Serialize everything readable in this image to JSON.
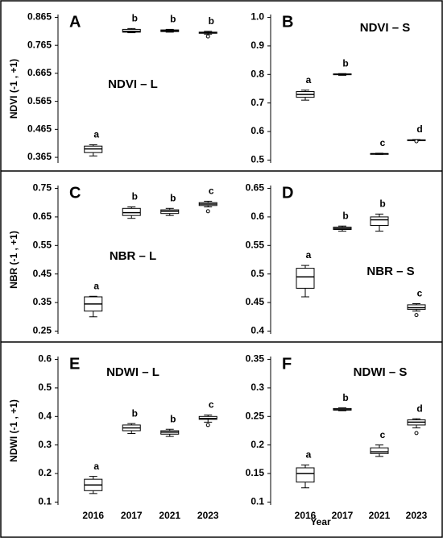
{
  "x_label": "Year",
  "chart_data": [
    {
      "type": "box",
      "panel": "A",
      "title": "NDVI – L",
      "ylabel": "NDVI (-1 , +1)",
      "ylim": [
        0.345,
        0.875
      ],
      "yticks": [
        0.365,
        0.465,
        0.565,
        0.665,
        0.765,
        0.865
      ],
      "boxes": [
        {
          "min": 0.37,
          "q1": 0.382,
          "median": 0.395,
          "q3": 0.405,
          "max": 0.41,
          "label": "a"
        },
        {
          "min": 0.81,
          "q1": 0.812,
          "median": 0.815,
          "q3": 0.822,
          "max": 0.825,
          "label": "b"
        },
        {
          "min": 0.812,
          "q1": 0.814,
          "median": 0.817,
          "q3": 0.82,
          "max": 0.822,
          "label": "b"
        },
        {
          "min": 0.805,
          "q1": 0.808,
          "median": 0.81,
          "q3": 0.812,
          "max": 0.815,
          "outliers": [
            0.797
          ],
          "label": "b"
        }
      ]
    },
    {
      "type": "box",
      "panel": "B",
      "title": "NDVI – S",
      "ylim": [
        0.49,
        1.01
      ],
      "yticks": [
        0.5,
        0.6,
        0.7,
        0.8,
        0.9,
        {
          "value": 1,
          "label": "1.0"
        }
      ],
      "boxes": [
        {
          "min": 0.71,
          "q1": 0.72,
          "median": 0.73,
          "q3": 0.74,
          "max": 0.745,
          "label": "a"
        },
        {
          "min": 0.797,
          "q1": 0.799,
          "median": 0.8,
          "q3": 0.802,
          "max": 0.803,
          "label": "b"
        },
        {
          "min": 0.52,
          "q1": 0.521,
          "median": 0.522,
          "q3": 0.523,
          "max": 0.524,
          "label": "c"
        },
        {
          "min": 0.568,
          "q1": 0.569,
          "median": 0.57,
          "q3": 0.571,
          "max": 0.572,
          "outliers": [
            0.566
          ],
          "label": "d"
        }
      ]
    },
    {
      "type": "box",
      "panel": "C",
      "title": "NBR – L",
      "ylabel": "NBR (-1 , +1)",
      "ylim": [
        0.24,
        0.76
      ],
      "yticks": [
        0.25,
        0.35,
        0.45,
        0.55,
        0.65,
        0.75
      ],
      "boxes": [
        {
          "min": 0.3,
          "q1": 0.32,
          "median": 0.345,
          "q3": 0.37,
          "max": 0.372,
          "label": "a"
        },
        {
          "min": 0.645,
          "q1": 0.655,
          "median": 0.665,
          "q3": 0.68,
          "max": 0.685,
          "label": "b"
        },
        {
          "min": 0.655,
          "q1": 0.662,
          "median": 0.67,
          "q3": 0.675,
          "max": 0.68,
          "label": "b"
        },
        {
          "min": 0.685,
          "q1": 0.69,
          "median": 0.695,
          "q3": 0.7,
          "max": 0.705,
          "outliers": [
            0.67
          ],
          "label": "c"
        }
      ]
    },
    {
      "type": "box",
      "panel": "D",
      "title": "NBR – S",
      "ylim": [
        0.395,
        0.655
      ],
      "yticks": [
        0.4,
        0.45,
        0.5,
        0.55,
        0.6,
        0.65
      ],
      "boxes": [
        {
          "min": 0.46,
          "q1": 0.475,
          "median": 0.495,
          "q3": 0.51,
          "max": 0.515,
          "label": "a"
        },
        {
          "min": 0.575,
          "q1": 0.578,
          "median": 0.58,
          "q3": 0.582,
          "max": 0.584,
          "label": "b"
        },
        {
          "min": 0.575,
          "q1": 0.585,
          "median": 0.595,
          "q3": 0.6,
          "max": 0.605,
          "label": "b"
        },
        {
          "min": 0.435,
          "q1": 0.438,
          "median": 0.441,
          "q3": 0.446,
          "max": 0.448,
          "outliers": [
            0.428
          ],
          "label": "c"
        }
      ]
    },
    {
      "type": "box",
      "panel": "E",
      "title": "NDWI – L",
      "ylabel": "NDWI (-1 , +1)",
      "categories": [
        "2016",
        "2017",
        "2021",
        "2023"
      ],
      "ylim": [
        0.09,
        0.61
      ],
      "yticks": [
        0.1,
        0.2,
        0.3,
        0.4,
        0.5,
        0.6
      ],
      "boxes": [
        {
          "min": 0.13,
          "q1": 0.14,
          "median": 0.16,
          "q3": 0.18,
          "max": 0.19,
          "label": "a"
        },
        {
          "min": 0.34,
          "q1": 0.35,
          "median": 0.36,
          "q3": 0.37,
          "max": 0.375,
          "label": "b"
        },
        {
          "min": 0.33,
          "q1": 0.338,
          "median": 0.345,
          "q3": 0.35,
          "max": 0.355,
          "label": "b"
        },
        {
          "min": 0.38,
          "q1": 0.39,
          "median": 0.393,
          "q3": 0.4,
          "max": 0.405,
          "outliers": [
            0.37
          ],
          "label": "c"
        }
      ]
    },
    {
      "type": "box",
      "panel": "F",
      "title": "NDWI – S",
      "categories": [
        "2016",
        "2017",
        "2021",
        "2023"
      ],
      "ylim": [
        0.095,
        0.355
      ],
      "yticks": [
        0.1,
        0.15,
        0.2,
        0.25,
        0.3,
        0.35
      ],
      "boxes": [
        {
          "min": 0.125,
          "q1": 0.135,
          "median": 0.15,
          "q3": 0.16,
          "max": 0.165,
          "label": "a"
        },
        {
          "min": 0.26,
          "q1": 0.261,
          "median": 0.262,
          "q3": 0.264,
          "max": 0.265,
          "label": "b"
        },
        {
          "min": 0.18,
          "q1": 0.185,
          "median": 0.188,
          "q3": 0.195,
          "max": 0.2,
          "label": "c"
        },
        {
          "min": 0.23,
          "q1": 0.235,
          "median": 0.24,
          "q3": 0.244,
          "max": 0.246,
          "outliers": [
            0.221
          ],
          "label": "d"
        }
      ]
    }
  ]
}
